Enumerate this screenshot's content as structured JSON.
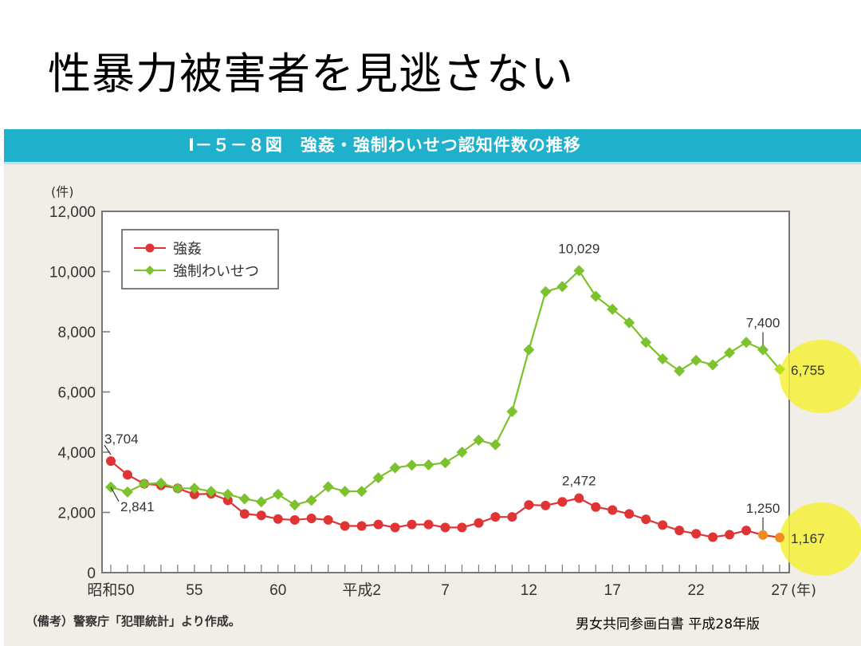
{
  "slide": {
    "title": "性暴力被害者を見逃さない",
    "source": "男女共同参画白書 平成28年版"
  },
  "figure": {
    "header": "Ⅰ－５－８図　強姦・強制わいせつ認知件数の推移",
    "note": "（備考）警察庁「犯罪統計」より作成。"
  },
  "chart_data": {
    "type": "line",
    "title": "強姦・強制わいせつ認知件数の推移",
    "xlabel": "(年)",
    "ylabel": "(件)",
    "ylim": [
      0,
      12000
    ],
    "yticks": [
      0,
      2000,
      4000,
      6000,
      8000,
      10000,
      12000
    ],
    "ytick_labels": [
      "0",
      "2,000",
      "4,000",
      "6,000",
      "8,000",
      "10,000",
      "12,000"
    ],
    "xtick_labels": [
      "昭和50",
      "55",
      "60",
      "平成2",
      "7",
      "12",
      "17",
      "22",
      "27"
    ],
    "xtick_index": [
      0,
      5,
      10,
      15,
      20,
      25,
      30,
      35,
      40
    ],
    "x": [
      "昭和50",
      "51",
      "52",
      "53",
      "54",
      "55",
      "56",
      "57",
      "58",
      "59",
      "60",
      "61",
      "62",
      "63",
      "平成元",
      "2",
      "3",
      "4",
      "5",
      "6",
      "7",
      "8",
      "9",
      "10",
      "11",
      "12",
      "13",
      "14",
      "15",
      "16",
      "17",
      "18",
      "19",
      "20",
      "21",
      "22",
      "23",
      "24",
      "25",
      "26",
      "27"
    ],
    "legend_position": "top-left",
    "series": [
      {
        "name": "強姦",
        "color": "#e03434",
        "marker": "circle",
        "values": [
          3704,
          3250,
          2950,
          2900,
          2800,
          2600,
          2620,
          2400,
          1950,
          1900,
          1780,
          1750,
          1800,
          1750,
          1550,
          1550,
          1600,
          1500,
          1600,
          1600,
          1500,
          1500,
          1650,
          1850,
          1850,
          2250,
          2230,
          2350,
          2472,
          2180,
          2080,
          1950,
          1770,
          1580,
          1400,
          1290,
          1180,
          1260,
          1400,
          1250,
          1167
        ]
      },
      {
        "name": "強制わいせつ",
        "color": "#7cc22c",
        "marker": "diamond",
        "values": [
          2841,
          2680,
          2950,
          2970,
          2800,
          2800,
          2700,
          2600,
          2450,
          2350,
          2600,
          2250,
          2400,
          2850,
          2700,
          2700,
          3150,
          3480,
          3570,
          3580,
          3650,
          4000,
          4400,
          4250,
          5350,
          7400,
          9330,
          9500,
          10029,
          9180,
          8750,
          8300,
          7650,
          7100,
          6700,
          7050,
          6900,
          7300,
          7650,
          7400,
          6755
        ]
      }
    ],
    "annotations": [
      {
        "series": 0,
        "index": 0,
        "text": "3,704"
      },
      {
        "series": 1,
        "index": 0,
        "text": "2,841"
      },
      {
        "series": 1,
        "index": 28,
        "text": "10,029"
      },
      {
        "series": 0,
        "index": 28,
        "text": "2,472"
      },
      {
        "series": 1,
        "index": 39,
        "text": "7,400"
      },
      {
        "series": 1,
        "index": 40,
        "text": "6,755"
      },
      {
        "series": 0,
        "index": 39,
        "text": "1,250"
      },
      {
        "series": 0,
        "index": 40,
        "text": "1,167"
      }
    ],
    "highlight_color": "#f5f03a"
  }
}
